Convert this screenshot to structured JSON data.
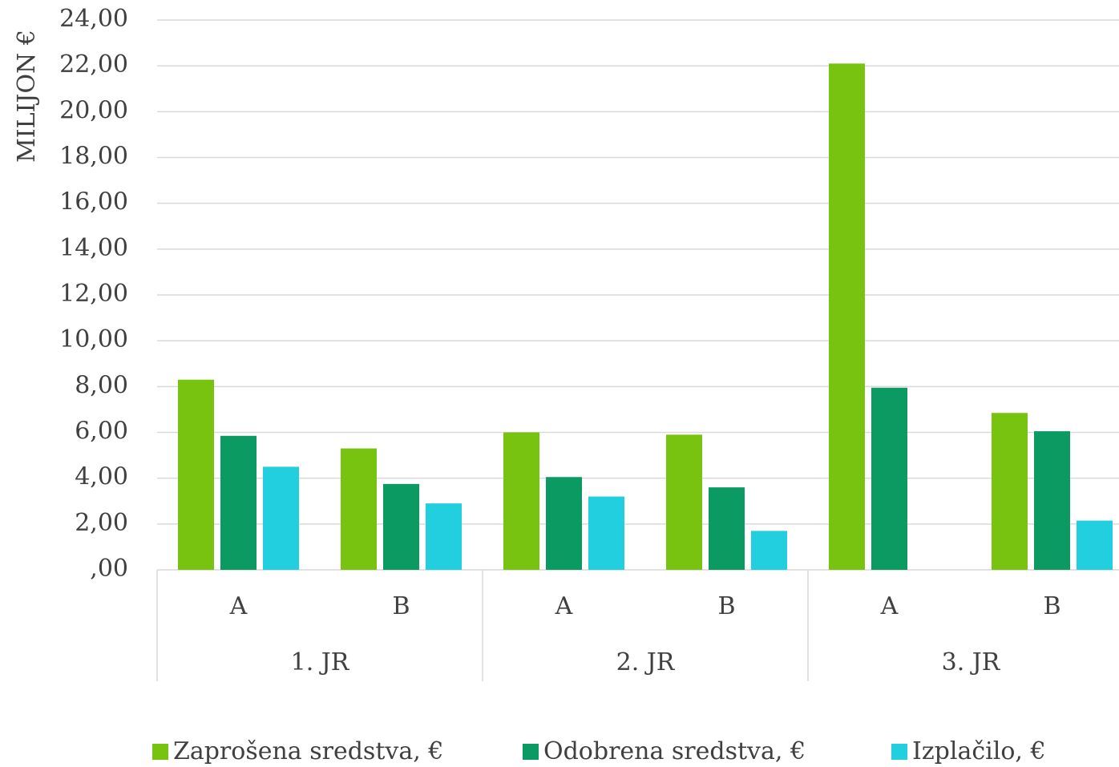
{
  "chart_data": {
    "type": "bar",
    "y_label": "MILIJON €",
    "categories": [
      "A",
      "B",
      "A",
      "B",
      "A",
      "B"
    ],
    "category_groups": [
      "1. JR",
      "2. JR",
      "3. JR"
    ],
    "series": [
      {
        "name": "Zaprošena sredstva, €",
        "color": "#78c30f",
        "values": [
          8.3,
          5.3,
          6.0,
          5.9,
          22.1,
          6.85
        ]
      },
      {
        "name": "Odobrena sredstva, €",
        "color": "#0b9a62",
        "values": [
          5.85,
          3.75,
          4.05,
          3.6,
          7.95,
          6.05
        ]
      },
      {
        "name": "Izplačilo, €",
        "color": "#22cfdf",
        "values": [
          4.5,
          2.9,
          3.2,
          1.7,
          0,
          2.15
        ]
      }
    ],
    "ylim": [
      0,
      24
    ],
    "yticks": [
      {
        "value": 0,
        "label": ",00"
      },
      {
        "value": 2,
        "label": "2,00"
      },
      {
        "value": 4,
        "label": "4,00"
      },
      {
        "value": 6,
        "label": "6,00"
      },
      {
        "value": 8,
        "label": "8,00"
      },
      {
        "value": 10,
        "label": "10,00"
      },
      {
        "value": 12,
        "label": "12,00"
      },
      {
        "value": 14,
        "label": "14,00"
      },
      {
        "value": 16,
        "label": "16,00"
      },
      {
        "value": 18,
        "label": "18,00"
      },
      {
        "value": 20,
        "label": "20,00"
      },
      {
        "value": 22,
        "label": "22,00"
      },
      {
        "value": 24,
        "label": "24,00"
      }
    ],
    "grid": true,
    "legend": "bottom"
  }
}
